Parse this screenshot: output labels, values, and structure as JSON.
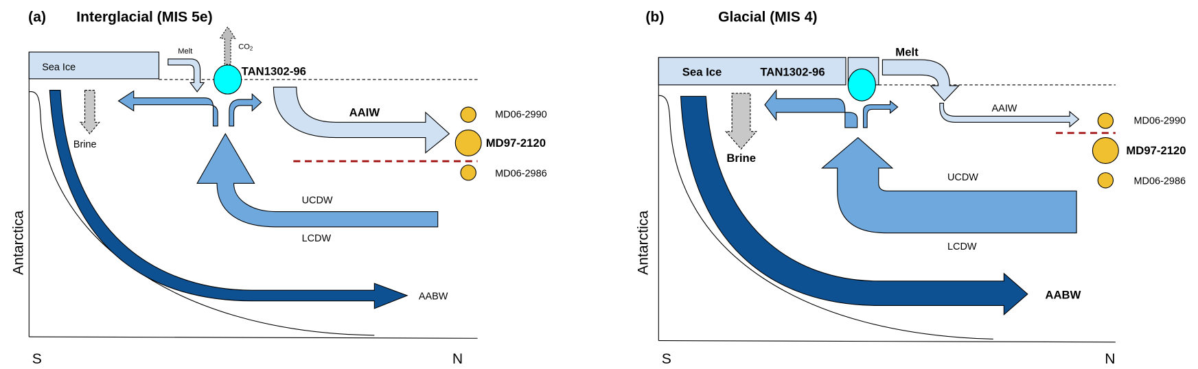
{
  "colors": {
    "sea_ice": "#cfe1f2",
    "aaiw": "#cfe1f2",
    "cdw": "#6fa8dc",
    "aabw": "#0e5192",
    "brine": "#c8c8c8",
    "site_tan": "#00ffff",
    "site_md": "#f0c030",
    "front_line": "#a01010"
  },
  "panel_a": {
    "letter": "(a)",
    "title": "Interglacial (MIS 5e)",
    "sea_ice": "Sea Ice",
    "melt": "Melt",
    "co2": "CO",
    "co2_sub": "2",
    "tan": "TAN1302-96",
    "brine": "Brine",
    "aaiw": "AAIW",
    "ucdw": "UCDW",
    "lcdw": "LCDW",
    "aabw": "AABW",
    "core_upper": "MD06-2990",
    "core_main": "MD97-2120",
    "core_lower": "MD06-2986",
    "y_label": "Antarctica",
    "x_left": "S",
    "x_right": "N"
  },
  "panel_b": {
    "letter": "(b)",
    "title": "Glacial (MIS 4)",
    "sea_ice": "Sea Ice",
    "melt": "Melt",
    "tan": "TAN1302-96",
    "brine": "Brine",
    "aaiw": "AAIW",
    "ucdw": "UCDW",
    "lcdw": "LCDW",
    "aabw": "AABW",
    "core_upper": "MD06-2990",
    "core_main": "MD97-2120",
    "core_lower": "MD06-2986",
    "y_label": "Antarctica",
    "x_left": "S",
    "x_right": "N"
  }
}
